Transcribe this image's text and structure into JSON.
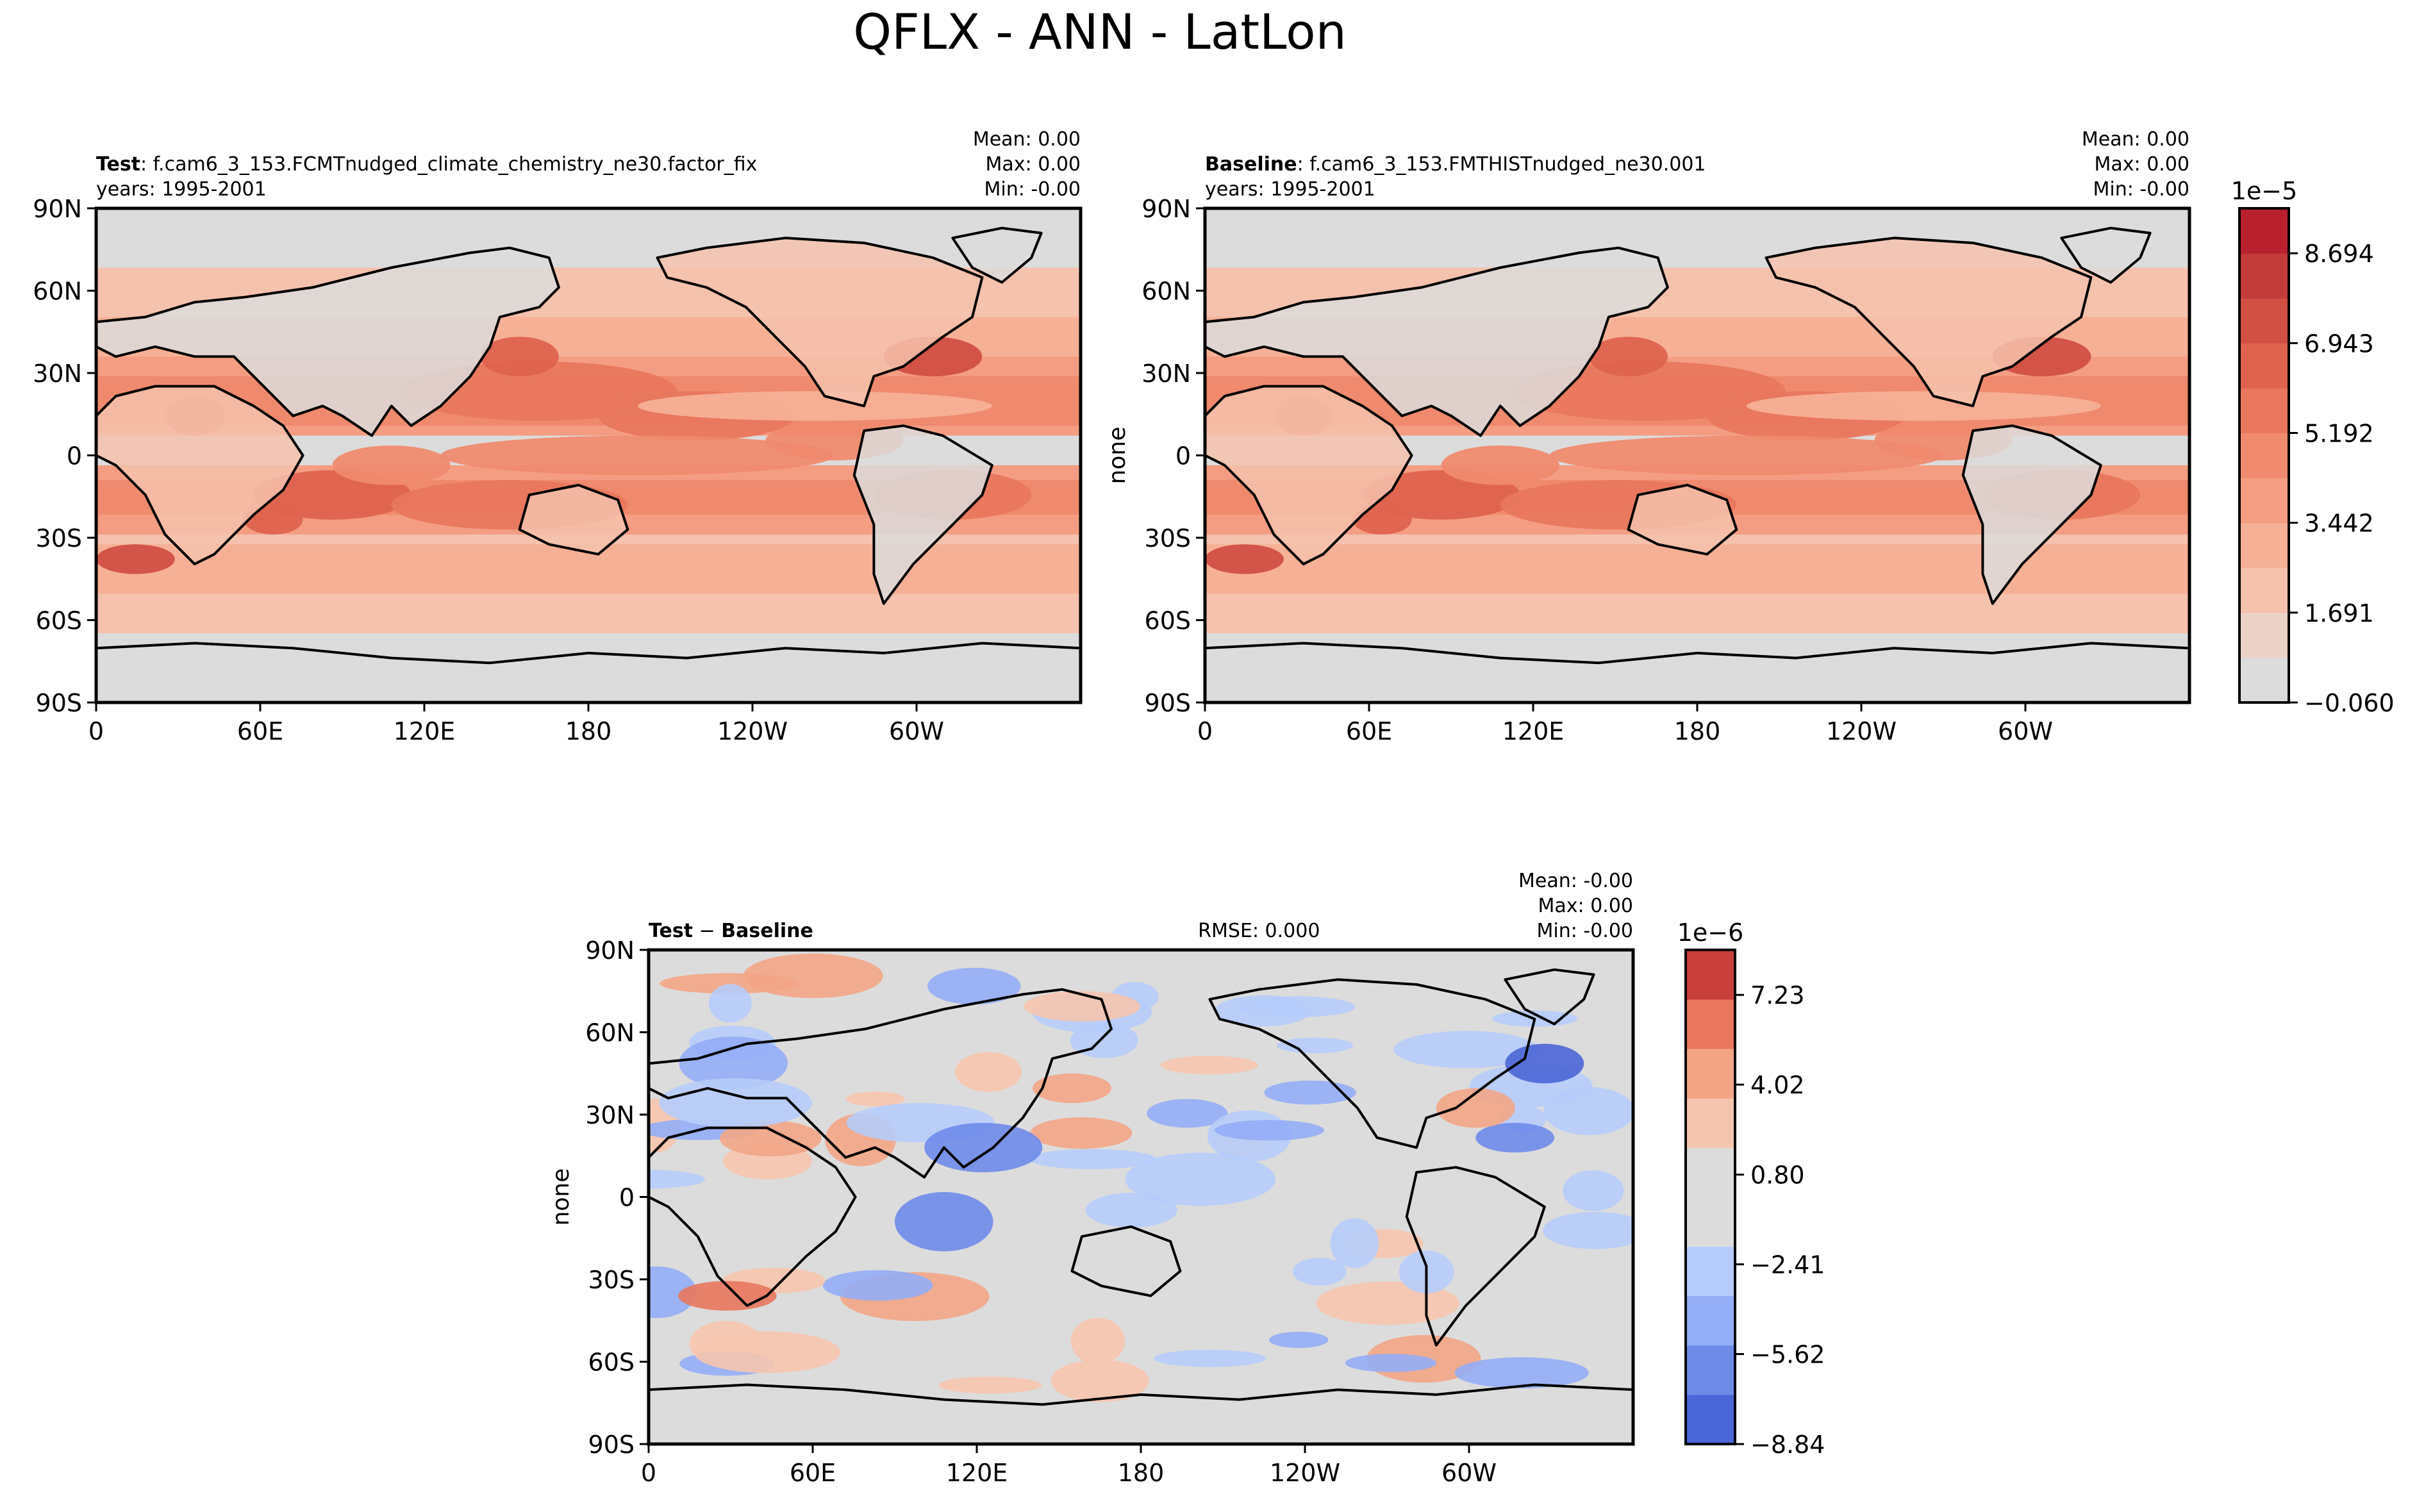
{
  "figure": {
    "title": "QFLX - ANN - LatLon"
  },
  "chart_data": [
    {
      "type": "contour-map",
      "id": "test",
      "label_bold": "Test",
      "label_rest": ": f.cam6_3_153.FCMTnudged_climate_chemistry_ne30.factor_fix",
      "years": "years: 1995-2001",
      "stats": [
        "Mean:  0.00",
        "Max:  0.00",
        "Min: -0.00"
      ],
      "ylabel": "",
      "xticks": [
        "0",
        "60E",
        "120E",
        "180",
        "120W",
        "60W"
      ],
      "yticks": [
        "90N",
        "60N",
        "30N",
        "0",
        "30S",
        "60S",
        "90S"
      ],
      "xlim": [
        0,
        360
      ],
      "ylim": [
        -90,
        90
      ]
    },
    {
      "type": "contour-map",
      "id": "baseline",
      "label_bold": "Baseline",
      "label_rest": ": f.cam6_3_153.FMTHISTnudged_ne30.001",
      "years": "years: 1995-2001",
      "stats": [
        "Mean:  0.00",
        "Max:  0.00",
        "Min: -0.00"
      ],
      "ylabel": "none",
      "xticks": [
        "0",
        "60E",
        "120E",
        "180",
        "120W",
        "60W"
      ],
      "yticks": [
        "90N",
        "60N",
        "30N",
        "0",
        "30S",
        "60S",
        "90S"
      ],
      "xlim": [
        0,
        360
      ],
      "ylim": [
        -90,
        90
      ]
    },
    {
      "type": "contour-map",
      "id": "diff",
      "label_bold": "Test",
      "label_mid": " − ",
      "label_bold2": "Baseline",
      "rmse": "RMSE: 0.000",
      "stats": [
        "Mean: -0.00",
        "Max:  0.00",
        "Min: -0.00"
      ],
      "ylabel": "none",
      "xticks": [
        "0",
        "60E",
        "120E",
        "180",
        "120W",
        "60W"
      ],
      "yticks": [
        "90N",
        "60N",
        "30N",
        "0",
        "30S",
        "60S",
        "90S"
      ],
      "xlim": [
        0,
        360
      ],
      "ylim": [
        -90,
        90
      ]
    }
  ],
  "colorbars": [
    {
      "id": "main",
      "exponent": "1e−5",
      "ticks": [
        "8.694",
        "6.943",
        "5.192",
        "3.442",
        "1.691",
        "−0.060"
      ],
      "tick_values": [
        8.694,
        6.943,
        5.192,
        3.442,
        1.691,
        -0.06
      ],
      "range": [
        -0.06,
        9.57
      ],
      "colors": [
        "#dcdcdc",
        "#ecd3c8",
        "#f4c2ad",
        "#f6b096",
        "#f49d82",
        "#ef8a6e",
        "#e8775d",
        "#de634e",
        "#d14f43",
        "#c23a3a",
        "#b8202e"
      ]
    },
    {
      "id": "diff",
      "exponent": "1e−6",
      "ticks": [
        "7.23",
        "4.02",
        "0.80",
        "−2.41",
        "−5.62",
        "−8.84"
      ],
      "tick_values": [
        7.23,
        4.02,
        0.8,
        -2.41,
        -5.62,
        -8.84
      ],
      "range": [
        -8.84,
        8.84
      ],
      "colors": [
        "#4b66d6",
        "#6e8bea",
        "#93adf6",
        "#b6ccfa",
        "#dcdcdc",
        "#dcdcdc",
        "#f6c5ae",
        "#f3a586",
        "#e8775d",
        "#c83f3b"
      ]
    }
  ]
}
